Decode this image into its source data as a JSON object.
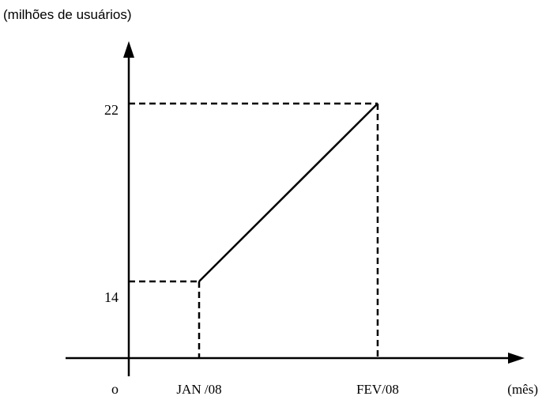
{
  "chart_data": {
    "type": "line",
    "ylabel": "(milhões de usuários)",
    "xlabel": "(mês)",
    "origin_label": "o",
    "categories": [
      "JAN /08",
      "FEV/08"
    ],
    "series": [
      {
        "values": [
          14,
          22
        ]
      }
    ],
    "yticks": [
      14,
      22
    ],
    "guide_lines": "dashed",
    "grid": false,
    "colors": {
      "line": "#000000",
      "axis": "#000000",
      "background": "#ffffff"
    }
  }
}
